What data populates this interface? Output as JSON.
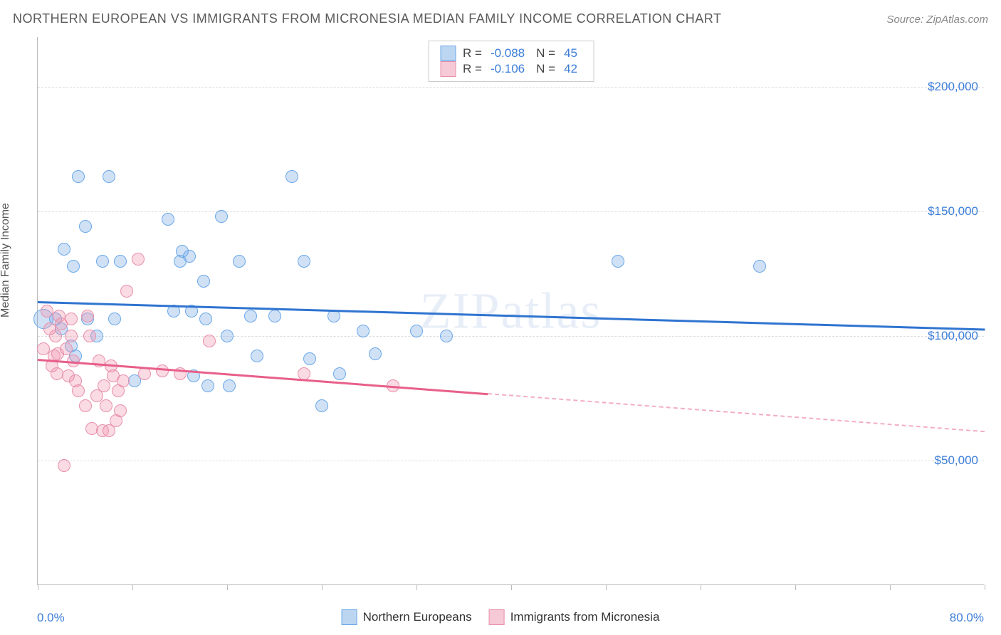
{
  "title": "NORTHERN EUROPEAN VS IMMIGRANTS FROM MICRONESIA MEDIAN FAMILY INCOME CORRELATION CHART",
  "source": "Source: ZipAtlas.com",
  "ylabel": "Median Family Income",
  "watermark": "ZIPatlas",
  "chart": {
    "type": "scatter",
    "xlim": [
      0,
      80
    ],
    "ylim": [
      0,
      220000
    ],
    "x_axis_label_left": "0.0%",
    "x_axis_label_right": "80.0%",
    "xtick_positions": [
      0,
      8,
      16,
      24,
      32,
      40,
      48,
      56,
      64,
      72,
      80
    ],
    "ygrid": [
      {
        "value": 50000,
        "label": "$50,000"
      },
      {
        "value": 100000,
        "label": "$100,000"
      },
      {
        "value": 150000,
        "label": "$150,000"
      },
      {
        "value": 200000,
        "label": "$200,000"
      }
    ],
    "grid_color": "#dddddd",
    "background_color": "#ffffff",
    "axis_color": "#bbbbbb",
    "tick_label_color": "#3b7dd8",
    "marker_radius_default": 9,
    "series": [
      {
        "key": "northern_europeans",
        "label": "Northern Europeans",
        "fill": "rgba(120,170,230,0.35)",
        "stroke": "#6aa8e8",
        "swatch_fill": "#bcd6f2",
        "swatch_stroke": "#6aa8e8",
        "r_value": "-0.088",
        "n_value": "45",
        "trend": {
          "x1": 0,
          "y1": 114000,
          "x2": 80,
          "y2": 103000,
          "solid_until_x": 80,
          "color": "#2f74d0",
          "width": 2.5
        },
        "points": [
          {
            "x": 0.5,
            "y": 107000,
            "r": 14
          },
          {
            "x": 2.2,
            "y": 135000
          },
          {
            "x": 3.0,
            "y": 128000
          },
          {
            "x": 3.4,
            "y": 164000
          },
          {
            "x": 4.0,
            "y": 144000
          },
          {
            "x": 5.5,
            "y": 130000
          },
          {
            "x": 6.0,
            "y": 164000
          },
          {
            "x": 6.5,
            "y": 107000
          },
          {
            "x": 7.0,
            "y": 130000
          },
          {
            "x": 8.2,
            "y": 82000
          },
          {
            "x": 1.5,
            "y": 107000
          },
          {
            "x": 2.0,
            "y": 103000
          },
          {
            "x": 2.8,
            "y": 96000
          },
          {
            "x": 3.2,
            "y": 92000
          },
          {
            "x": 4.2,
            "y": 107000
          },
          {
            "x": 5.0,
            "y": 100000
          },
          {
            "x": 11.0,
            "y": 147000
          },
          {
            "x": 11.5,
            "y": 110000
          },
          {
            "x": 12.0,
            "y": 130000
          },
          {
            "x": 12.2,
            "y": 134000
          },
          {
            "x": 12.8,
            "y": 132000
          },
          {
            "x": 13.0,
            "y": 110000
          },
          {
            "x": 13.2,
            "y": 84000
          },
          {
            "x": 14.0,
            "y": 122000
          },
          {
            "x": 14.2,
            "y": 107000
          },
          {
            "x": 14.4,
            "y": 80000
          },
          {
            "x": 15.5,
            "y": 148000
          },
          {
            "x": 16.0,
            "y": 100000
          },
          {
            "x": 16.2,
            "y": 80000
          },
          {
            "x": 17.0,
            "y": 130000
          },
          {
            "x": 18.0,
            "y": 108000
          },
          {
            "x": 18.5,
            "y": 92000
          },
          {
            "x": 20.0,
            "y": 108000
          },
          {
            "x": 21.5,
            "y": 164000
          },
          {
            "x": 22.5,
            "y": 130000
          },
          {
            "x": 23.0,
            "y": 91000
          },
          {
            "x": 24.0,
            "y": 72000
          },
          {
            "x": 25.0,
            "y": 108000
          },
          {
            "x": 25.5,
            "y": 85000
          },
          {
            "x": 27.5,
            "y": 102000
          },
          {
            "x": 28.5,
            "y": 93000
          },
          {
            "x": 32.0,
            "y": 102000
          },
          {
            "x": 34.5,
            "y": 100000
          },
          {
            "x": 49.0,
            "y": 130000
          },
          {
            "x": 61.0,
            "y": 128000
          }
        ]
      },
      {
        "key": "immigrants_micronesia",
        "label": "Immigrants from Micronesia",
        "fill": "rgba(240,150,175,0.35)",
        "stroke": "#e88fab",
        "swatch_fill": "#f6c9d6",
        "swatch_stroke": "#e88fab",
        "r_value": "-0.106",
        "n_value": "42",
        "trend": {
          "x1": 0,
          "y1": 91000,
          "x2": 80,
          "y2": 62000,
          "solid_until_x": 38,
          "color": "#e85f8a",
          "width": 2.5
        },
        "points": [
          {
            "x": 0.5,
            "y": 95000
          },
          {
            "x": 0.8,
            "y": 110000
          },
          {
            "x": 1.0,
            "y": 103000
          },
          {
            "x": 1.2,
            "y": 88000
          },
          {
            "x": 1.4,
            "y": 92000
          },
          {
            "x": 1.5,
            "y": 100000
          },
          {
            "x": 1.6,
            "y": 85000
          },
          {
            "x": 1.7,
            "y": 93000
          },
          {
            "x": 1.8,
            "y": 108000
          },
          {
            "x": 2.0,
            "y": 105000
          },
          {
            "x": 2.2,
            "y": 48000
          },
          {
            "x": 2.4,
            "y": 95000
          },
          {
            "x": 2.6,
            "y": 84000
          },
          {
            "x": 2.8,
            "y": 100000
          },
          {
            "x": 2.8,
            "y": 107000
          },
          {
            "x": 3.0,
            "y": 90000
          },
          {
            "x": 3.2,
            "y": 82000
          },
          {
            "x": 3.4,
            "y": 78000
          },
          {
            "x": 4.0,
            "y": 72000
          },
          {
            "x": 4.2,
            "y": 108000
          },
          {
            "x": 4.4,
            "y": 100000
          },
          {
            "x": 4.6,
            "y": 63000
          },
          {
            "x": 5.0,
            "y": 76000
          },
          {
            "x": 5.2,
            "y": 90000
          },
          {
            "x": 5.5,
            "y": 62000
          },
          {
            "x": 5.6,
            "y": 80000
          },
          {
            "x": 5.8,
            "y": 72000
          },
          {
            "x": 6.0,
            "y": 62000
          },
          {
            "x": 6.2,
            "y": 88000
          },
          {
            "x": 6.4,
            "y": 84000
          },
          {
            "x": 6.6,
            "y": 66000
          },
          {
            "x": 6.8,
            "y": 78000
          },
          {
            "x": 7.0,
            "y": 70000
          },
          {
            "x": 7.2,
            "y": 82000
          },
          {
            "x": 7.5,
            "y": 118000
          },
          {
            "x": 8.5,
            "y": 131000
          },
          {
            "x": 9.0,
            "y": 85000
          },
          {
            "x": 10.5,
            "y": 86000
          },
          {
            "x": 12.0,
            "y": 85000
          },
          {
            "x": 14.5,
            "y": 98000
          },
          {
            "x": 22.5,
            "y": 85000
          },
          {
            "x": 30.0,
            "y": 80000
          }
        ]
      }
    ]
  },
  "legend_r_label": "R =",
  "legend_n_label": "N ="
}
